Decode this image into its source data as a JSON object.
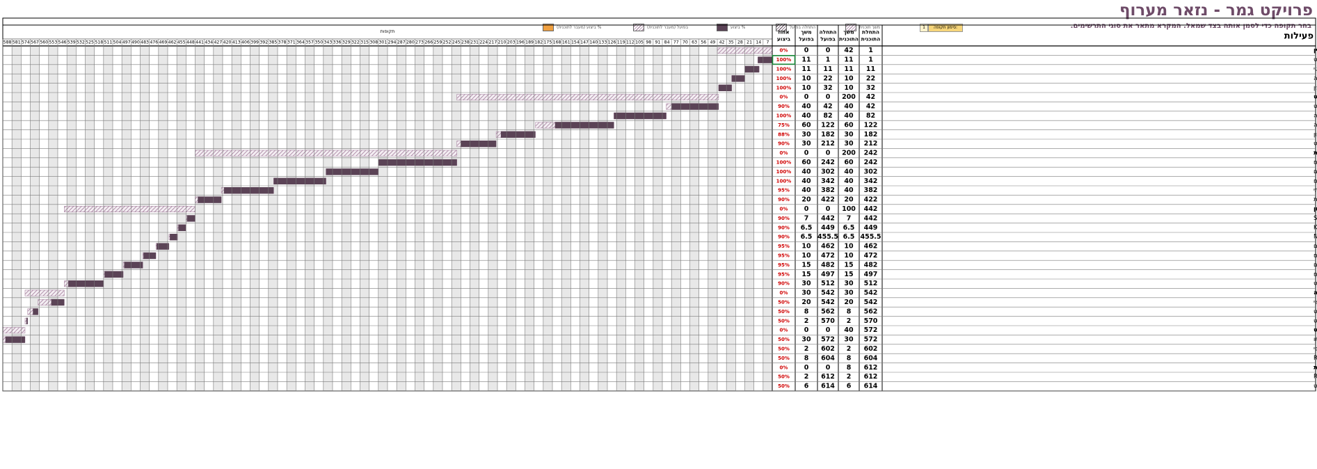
{
  "title": "פרויקט גמר - נזאר מערוף",
  "subtitle": "בחר תקופה כדי לסמן אותה בצד שמאל. המקרא מתאר את סוגי התרשימים.",
  "legend": {
    "period_highlight_label": "סימון תקופה:",
    "period_highlight_value": "1",
    "plan": "משך תוכנית",
    "actual_start": "התחלה בפועל",
    "percent_complete": "% ביצוע",
    "actual_beyond": "בפועל (מעבר לתוכנית)",
    "complete_beyond": "% ביצוע (מעבר לתוכנית)"
  },
  "headers": {
    "activities": "פעילות",
    "plan_start": "התחלת התוכנית",
    "plan_duration": "משך התוכנית",
    "actual_start": "התחלה בפועל",
    "actual_duration": "משך בפועל",
    "percent": "אחוז ביצוע",
    "periods": "תקופות"
  },
  "chart_data": {
    "type": "gantt",
    "periods": [
      7,
      14,
      21,
      28,
      35,
      42,
      49,
      56,
      63,
      70,
      77,
      84,
      91,
      98,
      105,
      112,
      119,
      126,
      133,
      140,
      147,
      154,
      161,
      168,
      175,
      182,
      189,
      196,
      203,
      210,
      217,
      224,
      231,
      238,
      245,
      252,
      259,
      266,
      273,
      280,
      287,
      294,
      301,
      308,
      315,
      322,
      329,
      336,
      343,
      350,
      357,
      364,
      371,
      378,
      385,
      392,
      399,
      406,
      413,
      420,
      427,
      434,
      441,
      448,
      455,
      462,
      469,
      476,
      483,
      490,
      497,
      504,
      511,
      518,
      525,
      532,
      539,
      546,
      553,
      560,
      567,
      574,
      581,
      588
    ],
    "tasks": [
      {
        "name": "1- דוח מכין",
        "ps": 1,
        "pd": 42,
        "as": 0,
        "ad": 0,
        "pct": "0%",
        "summary": true
      },
      {
        "name": "1.1 חיפוש מקורות וחומר רלוונטי לפרויקט",
        "ps": 1,
        "pd": 11,
        "as": 1,
        "ad": 11,
        "pct": "100%"
      },
      {
        "name": "1.2 לימוד החומר הרלוונטי",
        "ps": 11,
        "pd": 11,
        "as": 11,
        "ad": 11,
        "pct": "100%"
      },
      {
        "name": "1.3 חיפוש ולימוד איזה שפת תכנות הכי מתאימה",
        "ps": 22,
        "pd": 10,
        "as": 22,
        "ad": 10,
        "pct": "100%"
      },
      {
        "name": "1.4 כתיבת דוח מכין",
        "ps": 32,
        "pd": 10,
        "as": 32,
        "ad": 10,
        "pct": "100%"
      },
      {
        "name": "2- חקירה ראשונית של הפרויקט",
        "ps": 42,
        "pd": 200,
        "as": 0,
        "ad": 0,
        "pct": "0%",
        "summary": true
      },
      {
        "name": "2.1 לימוד עצמי של קורסים באינטרנט הקשורים לפרויקט",
        "ps": 42,
        "pd": 40,
        "as": 42,
        "ad": 40,
        "pct": "90%"
      },
      {
        "name": "2.2 לימוד נושא לימוד מכונה",
        "ps": 82,
        "pd": 40,
        "as": 82,
        "ad": 40,
        "pct": "100%"
      },
      {
        "name": "2.3 לימוד נושא אלגוריתמים של לימוד מכונה",
        "ps": 122,
        "pd": 60,
        "as": 122,
        "ad": 60,
        "pct": "75%"
      },
      {
        "name": "2.4 לימוד שפת פיתון",
        "ps": 182,
        "pd": 30,
        "as": 182,
        "ad": 30,
        "pct": "88%"
      },
      {
        "name": "2.5 הכנת הנתונים המתאימים לפרויקט",
        "ps": 212,
        "pd": 30,
        "as": 212,
        "ad": 30,
        "pct": "90%"
      },
      {
        "name": "3- דוח התקדמות",
        "ps": 242,
        "pd": 200,
        "as": 0,
        "ad": 0,
        "pct": "0%",
        "summary": true
      },
      {
        "name": "3.1 בניית טבלאות הנתונים",
        "ps": 242,
        "pd": 60,
        "as": 242,
        "ad": 60,
        "pct": "100%"
      },
      {
        "name": "3.2 בדיקת טבלאות הנתונים , קורלציה, כמות, שלימות הנתונים",
        "ps": 302,
        "pd": 40,
        "as": 302,
        "ad": 40,
        "pct": "100%"
      },
      {
        "name": "3.3 קידוד טבלאות הנתונים",
        "ps": 342,
        "pd": 40,
        "as": 342,
        "ad": 40,
        "pct": "100%"
      },
      {
        "name": "3.4 מציאת האלגוריתמים המתאימים לטבלאות שבניתי",
        "ps": 382,
        "pd": 40,
        "as": 382,
        "ad": 40,
        "pct": "95%"
      },
      {
        "name": "3.5 כתיבת דוח התקדמות",
        "ps": 422,
        "pd": 20,
        "as": 422,
        "ad": 20,
        "pct": "90%"
      },
      {
        "name": "4- המשך לימודים וחקירה וכתיבת קודים בשפת פיתון",
        "ps": 442,
        "pd": 100,
        "as": 0,
        "ad": 0,
        "pct": "0%",
        "summary": true
      },
      {
        "name": "4.1 לימוד אלגוריתם SVM",
        "ps": 442,
        "pd": 7,
        "as": 442,
        "ad": 7,
        "pct": "90%"
      },
      {
        "name": "4.2 לימוד אלגוריתם KNN",
        "ps": 449,
        "pd": 6.5,
        "as": 449,
        "ad": 6.5,
        "pct": "90%"
      },
      {
        "name": "4.3 לימוד אלגוריתם NB",
        "ps": 455.5,
        "pd": 6.5,
        "as": 455.5,
        "ad": 6.5,
        "pct": "90%"
      },
      {
        "name": "4.4 כתיבת הקודים המתאימים לניתוח הנתונים",
        "ps": 462,
        "pd": 10,
        "as": 462,
        "ad": 10,
        "pct": "95%"
      },
      {
        "name": "4.5 כתיבת הקודים המתאימים לבדיקת האלגוריתמים",
        "ps": 472,
        "pd": 10,
        "as": 472,
        "ad": 10,
        "pct": "95%"
      },
      {
        "name": "4.6 כתיבת הקודים לביצוע השוואה כללית של שלושת האלגוריתמים",
        "ps": 482,
        "pd": 15,
        "as": 482,
        "ad": 15,
        "pct": "95%"
      },
      {
        "name": "4.7 כתיבת קודים להרצאת אלגוריתמים אלה על הנתונים שלי ובדיקת האלגוריתם",
        "ps": 497,
        "pd": 15,
        "as": 497,
        "ad": 15,
        "pct": "95%"
      },
      {
        "name": "4.8 תוצאות ומסקנות של הפרויקט",
        "ps": 512,
        "pd": 30,
        "as": 512,
        "ad": 30,
        "pct": "90%"
      },
      {
        "name": "5- יום פרויקט והדגמה",
        "ps": 542,
        "pd": 30,
        "as": 542,
        "ad": 30,
        "pct": "0%",
        "summary": true
      },
      {
        "name": "5.1 כתיבת הדוח הסופי כולל הנושא השלישי",
        "ps": 542,
        "pd": 20,
        "as": 542,
        "ad": 20,
        "pct": "50%"
      },
      {
        "name": "5.2 הכנת מצגת עבור הפרויקט",
        "ps": 562,
        "pd": 8,
        "as": 562,
        "ad": 8,
        "pct": "50%"
      },
      {
        "name": "5.3 הכנת והדגמת הפרויקט",
        "ps": 570,
        "pd": 2,
        "as": 570,
        "ad": 2,
        "pct": "50%"
      },
      {
        "name": "6- הכנת ספר הפרויקט",
        "ps": 572,
        "pd": 40,
        "as": 0,
        "ad": 0,
        "pct": "0%",
        "summary": true
      },
      {
        "name": "6.1 כתיבת הספר ובדיקתו",
        "ps": 572,
        "pd": 30,
        "as": 572,
        "ad": 30,
        "pct": "50%"
      },
      {
        "name": "6.2 הדפסת הספר הסופי",
        "ps": 602,
        "pd": 2,
        "as": 602,
        "ad": 2,
        "pct": "50%"
      },
      {
        "name": "6.3 הכנת והגשת מסמך RED",
        "ps": 604,
        "pd": 8,
        "as": 604,
        "ad": 8,
        "pct": "50%"
      },
      {
        "name": "7- הגנות",
        "ps": 612,
        "pd": 8,
        "as": 0,
        "ad": 0,
        "pct": "0%",
        "summary": true
      },
      {
        "name": "7.1 הבאת הספר והמצגת ומסמך RED",
        "ps": 612,
        "pd": 2,
        "as": 612,
        "ad": 2,
        "pct": "50%"
      },
      {
        "name": "7.2 הגנה על הפרויקט",
        "ps": 614,
        "pd": 6,
        "as": 614,
        "ad": 6,
        "pct": "50%"
      }
    ]
  },
  "colors": {
    "title": "#6e4b68",
    "bar": "#5b4356",
    "hatch": "#a07a99",
    "grid": "#7a7a7a",
    "shade": "#e8e8e8",
    "pct_red": "#d00000",
    "selected": "#1b8a3a"
  }
}
